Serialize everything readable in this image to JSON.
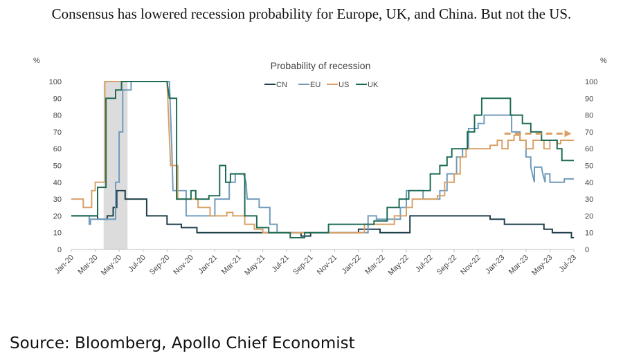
{
  "headline": "Consensus has lowered recession probability for Europe, UK, and China. But not the US.",
  "source": "Source: Bloomberg, Apollo Chief Economist",
  "chart_data": {
    "type": "line",
    "title": "Probability of recession",
    "ylabel_left": "%",
    "ylabel_right": "%",
    "ylim": [
      0,
      100
    ],
    "yticks": [
      0,
      10,
      20,
      30,
      40,
      50,
      60,
      70,
      80,
      90,
      100
    ],
    "x_range_months": [
      0,
      42
    ],
    "xticks": [
      {
        "m": 0,
        "label": "Jan-20"
      },
      {
        "m": 2,
        "label": "Mar-20"
      },
      {
        "m": 4,
        "label": "May-20"
      },
      {
        "m": 6,
        "label": "Jul-20"
      },
      {
        "m": 8,
        "label": "Sep-20"
      },
      {
        "m": 10,
        "label": "Nov-20"
      },
      {
        "m": 12,
        "label": "Jan-21"
      },
      {
        "m": 14,
        "label": "Mar-21"
      },
      {
        "m": 16,
        "label": "May-21"
      },
      {
        "m": 18,
        "label": "Jul-21"
      },
      {
        "m": 20,
        "label": "Sep-21"
      },
      {
        "m": 22,
        "label": "Nov-21"
      },
      {
        "m": 24,
        "label": "Jan-22"
      },
      {
        "m": 26,
        "label": "Mar-22"
      },
      {
        "m": 28,
        "label": "May-22"
      },
      {
        "m": 30,
        "label": "Jul-22"
      },
      {
        "m": 32,
        "label": "Sep-22"
      },
      {
        "m": 34,
        "label": "Nov-22"
      },
      {
        "m": 36,
        "label": "Jan-23"
      },
      {
        "m": 38,
        "label": "Mar-23"
      },
      {
        "m": 40,
        "label": "May-23"
      },
      {
        "m": 42,
        "label": "Jul-23"
      }
    ],
    "recession_shading": {
      "from_month": 2.7,
      "to_month": 4.7
    },
    "legend": {
      "position": "top-center",
      "entries": [
        "CN",
        "EU",
        "US",
        "UK"
      ]
    },
    "series": [
      {
        "name": "CN",
        "color": "#1f3f4a",
        "points": [
          [
            0,
            20
          ],
          [
            2.2,
            20
          ],
          [
            2.2,
            18
          ],
          [
            3.0,
            18
          ],
          [
            3.0,
            20
          ],
          [
            3.5,
            20
          ],
          [
            3.5,
            25
          ],
          [
            3.8,
            25
          ],
          [
            3.8,
            35
          ],
          [
            4.5,
            35
          ],
          [
            4.5,
            30
          ],
          [
            6.3,
            30
          ],
          [
            6.3,
            20
          ],
          [
            8.0,
            20
          ],
          [
            8.0,
            15
          ],
          [
            9.2,
            15
          ],
          [
            9.2,
            13
          ],
          [
            10.5,
            13
          ],
          [
            10.5,
            10
          ],
          [
            19.2,
            10
          ],
          [
            19.2,
            8
          ],
          [
            20.0,
            8
          ],
          [
            20.0,
            10
          ],
          [
            24.0,
            10
          ],
          [
            24.0,
            12
          ],
          [
            25.8,
            12
          ],
          [
            25.8,
            10
          ],
          [
            28.3,
            10
          ],
          [
            28.3,
            20
          ],
          [
            35.0,
            20
          ],
          [
            35.0,
            18
          ],
          [
            36.2,
            18
          ],
          [
            36.2,
            15
          ],
          [
            39.5,
            15
          ],
          [
            39.5,
            12
          ],
          [
            40.2,
            12
          ],
          [
            40.2,
            10
          ],
          [
            41.8,
            10
          ],
          [
            41.8,
            7
          ],
          [
            42.0,
            7
          ]
        ]
      },
      {
        "name": "EU",
        "color": "#6f9cbd",
        "points": [
          [
            0,
            20
          ],
          [
            1.5,
            20
          ],
          [
            1.5,
            15
          ],
          [
            1.6,
            15
          ],
          [
            1.6,
            18
          ],
          [
            3.7,
            18
          ],
          [
            3.7,
            40
          ],
          [
            4.0,
            40
          ],
          [
            4.0,
            70
          ],
          [
            4.3,
            70
          ],
          [
            4.3,
            95
          ],
          [
            5.0,
            95
          ],
          [
            5.0,
            100
          ],
          [
            8.2,
            100
          ],
          [
            8.4,
            60
          ],
          [
            8.5,
            35
          ],
          [
            9.6,
            35
          ],
          [
            9.6,
            20
          ],
          [
            12.0,
            20
          ],
          [
            12.0,
            30
          ],
          [
            13.2,
            30
          ],
          [
            13.2,
            40
          ],
          [
            13.7,
            40
          ],
          [
            13.7,
            45
          ],
          [
            14.4,
            45
          ],
          [
            14.6,
            40
          ],
          [
            14.7,
            30
          ],
          [
            15.7,
            30
          ],
          [
            15.7,
            25
          ],
          [
            16.6,
            25
          ],
          [
            16.6,
            15
          ],
          [
            17.2,
            15
          ],
          [
            17.2,
            10
          ],
          [
            24.8,
            10
          ],
          [
            24.8,
            20
          ],
          [
            25.5,
            20
          ],
          [
            25.5,
            18
          ],
          [
            27.5,
            18
          ],
          [
            27.5,
            25
          ],
          [
            28.0,
            25
          ],
          [
            28.0,
            35
          ],
          [
            29.4,
            35
          ],
          [
            29.4,
            30
          ],
          [
            30.8,
            30
          ],
          [
            30.8,
            35
          ],
          [
            31.4,
            35
          ],
          [
            31.4,
            45
          ],
          [
            32.2,
            45
          ],
          [
            32.2,
            55
          ],
          [
            32.7,
            55
          ],
          [
            32.7,
            60
          ],
          [
            33.2,
            60
          ],
          [
            33.2,
            72
          ],
          [
            34.0,
            72
          ],
          [
            34.0,
            75
          ],
          [
            34.5,
            75
          ],
          [
            34.5,
            80
          ],
          [
            36.8,
            80
          ],
          [
            36.8,
            70
          ],
          [
            37.5,
            70
          ],
          [
            37.5,
            65
          ],
          [
            38.0,
            65
          ],
          [
            38.0,
            55
          ],
          [
            38.4,
            55
          ],
          [
            38.4,
            49
          ],
          [
            38.7,
            40
          ],
          [
            38.7,
            49
          ],
          [
            39.3,
            49
          ],
          [
            39.4,
            45
          ],
          [
            39.6,
            40
          ],
          [
            39.6,
            45
          ],
          [
            40.0,
            45
          ],
          [
            40.0,
            40
          ],
          [
            40.3,
            40
          ],
          [
            41.2,
            40
          ],
          [
            41.2,
            42
          ],
          [
            42.0,
            42
          ]
        ]
      },
      {
        "name": "US",
        "color": "#d9a066",
        "points": [
          [
            0,
            30
          ],
          [
            1.0,
            30
          ],
          [
            1.0,
            25
          ],
          [
            1.7,
            25
          ],
          [
            1.7,
            35
          ],
          [
            2.0,
            35
          ],
          [
            2.0,
            40
          ],
          [
            2.8,
            40
          ],
          [
            2.8,
            100
          ],
          [
            8.0,
            100
          ],
          [
            8.3,
            50
          ],
          [
            8.9,
            50
          ],
          [
            8.9,
            30
          ],
          [
            10.6,
            30
          ],
          [
            10.6,
            25
          ],
          [
            11.6,
            25
          ],
          [
            11.6,
            20
          ],
          [
            13.0,
            20
          ],
          [
            13.0,
            22
          ],
          [
            13.5,
            22
          ],
          [
            13.5,
            20
          ],
          [
            14.5,
            20
          ],
          [
            14.5,
            15
          ],
          [
            15.3,
            15
          ],
          [
            15.3,
            12
          ],
          [
            16.0,
            12
          ],
          [
            16.0,
            10
          ],
          [
            19.0,
            10
          ],
          [
            19.0,
            10
          ],
          [
            20.0,
            10
          ],
          [
            20.0,
            10
          ],
          [
            24.5,
            10
          ],
          [
            24.5,
            15
          ],
          [
            27.0,
            15
          ],
          [
            27.0,
            20
          ],
          [
            28.0,
            20
          ],
          [
            28.0,
            25
          ],
          [
            28.5,
            25
          ],
          [
            28.5,
            30
          ],
          [
            30.6,
            30
          ],
          [
            30.6,
            32
          ],
          [
            31.2,
            32
          ],
          [
            31.2,
            40
          ],
          [
            32.0,
            40
          ],
          [
            32.0,
            45
          ],
          [
            32.5,
            45
          ],
          [
            32.5,
            55
          ],
          [
            33.0,
            55
          ],
          [
            33.0,
            60
          ],
          [
            34.0,
            60
          ],
          [
            34.0,
            60
          ],
          [
            35.0,
            60
          ],
          [
            35.0,
            62
          ],
          [
            35.6,
            62
          ],
          [
            35.6,
            65
          ],
          [
            36.0,
            65
          ],
          [
            36.0,
            60
          ],
          [
            36.5,
            60
          ],
          [
            36.5,
            65
          ],
          [
            37.0,
            65
          ],
          [
            37.0,
            68
          ],
          [
            37.5,
            68
          ],
          [
            37.5,
            65
          ],
          [
            38.0,
            65
          ],
          [
            38.0,
            60
          ],
          [
            38.6,
            60
          ],
          [
            38.6,
            65
          ],
          [
            39.5,
            65
          ],
          [
            39.5,
            60
          ],
          [
            40.0,
            60
          ],
          [
            40.0,
            65
          ],
          [
            40.6,
            65
          ],
          [
            40.6,
            63
          ],
          [
            40.9,
            63
          ],
          [
            40.9,
            65
          ],
          [
            42.0,
            65
          ]
        ]
      },
      {
        "name": "UK",
        "color": "#1f6b55",
        "points": [
          [
            0,
            20
          ],
          [
            2.2,
            20
          ],
          [
            2.2,
            37
          ],
          [
            2.9,
            37
          ],
          [
            2.9,
            90
          ],
          [
            3.7,
            90
          ],
          [
            3.7,
            95
          ],
          [
            4.2,
            95
          ],
          [
            4.2,
            100
          ],
          [
            8.0,
            100
          ],
          [
            8.2,
            90
          ],
          [
            8.8,
            90
          ],
          [
            8.8,
            30
          ],
          [
            10.0,
            30
          ],
          [
            10.0,
            35
          ],
          [
            10.4,
            35
          ],
          [
            10.4,
            30
          ],
          [
            11.5,
            30
          ],
          [
            11.5,
            32
          ],
          [
            12.4,
            32
          ],
          [
            12.4,
            50
          ],
          [
            12.9,
            50
          ],
          [
            12.9,
            40
          ],
          [
            13.3,
            40
          ],
          [
            13.3,
            45
          ],
          [
            14.5,
            45
          ],
          [
            14.5,
            20
          ],
          [
            15.5,
            20
          ],
          [
            15.5,
            13
          ],
          [
            16.5,
            13
          ],
          [
            16.5,
            10
          ],
          [
            18.3,
            10
          ],
          [
            18.3,
            7
          ],
          [
            19.5,
            7
          ],
          [
            19.5,
            10
          ],
          [
            21.5,
            10
          ],
          [
            21.5,
            15
          ],
          [
            25.3,
            15
          ],
          [
            25.3,
            17
          ],
          [
            26.4,
            17
          ],
          [
            26.4,
            25
          ],
          [
            27.4,
            25
          ],
          [
            27.4,
            30
          ],
          [
            28.2,
            30
          ],
          [
            28.2,
            35
          ],
          [
            30.0,
            35
          ],
          [
            30.0,
            45
          ],
          [
            30.8,
            45
          ],
          [
            30.8,
            50
          ],
          [
            31.4,
            50
          ],
          [
            31.4,
            55
          ],
          [
            31.8,
            55
          ],
          [
            31.8,
            60
          ],
          [
            33.1,
            60
          ],
          [
            33.1,
            70
          ],
          [
            33.7,
            70
          ],
          [
            33.7,
            80
          ],
          [
            34.3,
            80
          ],
          [
            34.3,
            90
          ],
          [
            36.7,
            90
          ],
          [
            36.7,
            80
          ],
          [
            37.7,
            80
          ],
          [
            37.7,
            75
          ],
          [
            38.4,
            75
          ],
          [
            38.4,
            70
          ],
          [
            39.3,
            70
          ],
          [
            39.3,
            65
          ],
          [
            40.6,
            65
          ],
          [
            40.6,
            60
          ],
          [
            41.0,
            60
          ],
          [
            41.0,
            53
          ],
          [
            42.0,
            53
          ]
        ]
      }
    ],
    "projection": {
      "series": "US",
      "from": [
        36.2,
        69
      ],
      "to": [
        41.8,
        69
      ],
      "style": "dashed-arrow"
    }
  }
}
